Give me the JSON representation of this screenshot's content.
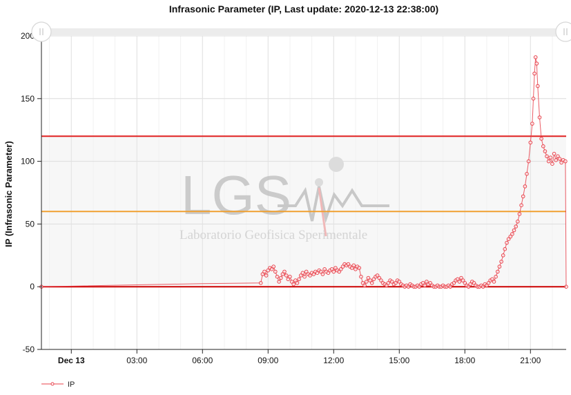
{
  "chart_data": {
    "type": "line",
    "title": "Infrasonic Parameter (IP, Last update: 2020-12-13 22:38:00)",
    "ylabel": "IP (Infrasonic Parameter)",
    "xlabel": "",
    "ylim": [
      -50,
      200
    ],
    "yticks": [
      -50,
      0,
      50,
      100,
      150,
      200
    ],
    "xlim": [
      "2020-12-12 22:38",
      "2020-12-13 22:38"
    ],
    "xticks": [
      {
        "label": "Dec 13",
        "time": "2020-12-13 00:00",
        "bold": true
      },
      {
        "label": "03:00",
        "time": "2020-12-13 03:00",
        "bold": false
      },
      {
        "label": "06:00",
        "time": "2020-12-13 06:00",
        "bold": false
      },
      {
        "label": "09:00",
        "time": "2020-12-13 09:00",
        "bold": false
      },
      {
        "label": "12:00",
        "time": "2020-12-13 12:00",
        "bold": false
      },
      {
        "label": "15:00",
        "time": "2020-12-13 15:00",
        "bold": false
      },
      {
        "label": "18:00",
        "time": "2020-12-13 18:00",
        "bold": false
      },
      {
        "label": "21:00",
        "time": "2020-12-13 21:00",
        "bold": false
      }
    ],
    "thresholds": [
      {
        "value": 0,
        "color": "#cc0000"
      },
      {
        "value": 60,
        "color": "#f0a030"
      },
      {
        "value": 120,
        "color": "#e02020"
      }
    ],
    "band": {
      "from": 0,
      "to": 120,
      "color": "#f7f7f7"
    },
    "grid": true,
    "legend": "bottom-left",
    "series": [
      {
        "name": "IP",
        "color": "#e8404a",
        "points": [
          [
            "2020-12-12 22:38",
            0
          ],
          [
            "2020-12-13 03:00",
            1.5
          ],
          [
            "2020-12-13 06:00",
            2.5
          ],
          [
            "2020-12-13 08:40",
            3
          ],
          [
            "2020-12-13 08:45",
            10
          ],
          [
            "2020-12-13 08:50",
            12
          ],
          [
            "2020-12-13 08:55",
            9
          ],
          [
            "2020-12-13 09:00",
            13
          ],
          [
            "2020-12-13 09:05",
            15
          ],
          [
            "2020-12-13 09:10",
            14
          ],
          [
            "2020-12-13 09:15",
            16
          ],
          [
            "2020-12-13 09:20",
            12
          ],
          [
            "2020-12-13 09:25",
            8
          ],
          [
            "2020-12-13 09:30",
            4
          ],
          [
            "2020-12-13 09:35",
            7
          ],
          [
            "2020-12-13 09:40",
            10
          ],
          [
            "2020-12-13 09:45",
            12
          ],
          [
            "2020-12-13 09:50",
            9
          ],
          [
            "2020-12-13 09:55",
            6
          ],
          [
            "2020-12-13 10:00",
            8
          ],
          [
            "2020-12-13 10:05",
            4
          ],
          [
            "2020-12-13 10:10",
            2
          ],
          [
            "2020-12-13 10:15",
            5
          ],
          [
            "2020-12-13 10:20",
            3
          ],
          [
            "2020-12-13 10:25",
            6
          ],
          [
            "2020-12-13 10:30",
            9
          ],
          [
            "2020-12-13 10:35",
            11
          ],
          [
            "2020-12-13 10:40",
            8
          ],
          [
            "2020-12-13 10:45",
            12
          ],
          [
            "2020-12-13 10:50",
            10
          ],
          [
            "2020-12-13 10:55",
            9
          ],
          [
            "2020-12-13 11:00",
            11
          ],
          [
            "2020-12-13 11:05",
            10
          ],
          [
            "2020-12-13 11:10",
            12
          ],
          [
            "2020-12-13 11:15",
            11
          ],
          [
            "2020-12-13 11:20",
            13
          ],
          [
            "2020-12-13 11:25",
            12
          ],
          [
            "2020-12-13 11:30",
            10
          ],
          [
            "2020-12-13 11:35",
            14
          ],
          [
            "2020-12-13 11:40",
            12
          ],
          [
            "2020-12-13 11:45",
            11
          ],
          [
            "2020-12-13 11:50",
            13
          ],
          [
            "2020-12-13 11:55",
            14
          ],
          [
            "2020-12-13 12:00",
            12
          ],
          [
            "2020-12-13 12:05",
            15
          ],
          [
            "2020-12-13 12:10",
            13
          ],
          [
            "2020-12-13 12:15",
            12
          ],
          [
            "2020-12-13 12:20",
            14
          ],
          [
            "2020-12-13 12:25",
            16
          ],
          [
            "2020-12-13 12:30",
            18
          ],
          [
            "2020-12-13 12:35",
            17
          ],
          [
            "2020-12-13 12:40",
            18
          ],
          [
            "2020-12-13 12:45",
            16
          ],
          [
            "2020-12-13 12:50",
            15
          ],
          [
            "2020-12-13 12:55",
            17
          ],
          [
            "2020-12-13 13:00",
            14
          ],
          [
            "2020-12-13 13:05",
            16
          ],
          [
            "2020-12-13 13:10",
            15
          ],
          [
            "2020-12-13 13:15",
            8
          ],
          [
            "2020-12-13 13:20",
            3
          ],
          [
            "2020-12-13 13:25",
            1
          ],
          [
            "2020-12-13 13:30",
            4
          ],
          [
            "2020-12-13 13:35",
            7
          ],
          [
            "2020-12-13 13:40",
            5
          ],
          [
            "2020-12-13 13:45",
            3
          ],
          [
            "2020-12-13 13:50",
            6
          ],
          [
            "2020-12-13 13:55",
            8
          ],
          [
            "2020-12-13 14:00",
            9
          ],
          [
            "2020-12-13 14:05",
            7
          ],
          [
            "2020-12-13 14:10",
            5
          ],
          [
            "2020-12-13 14:15",
            3
          ],
          [
            "2020-12-13 14:20",
            2
          ],
          [
            "2020-12-13 14:25",
            1
          ],
          [
            "2020-12-13 14:30",
            3
          ],
          [
            "2020-12-13 14:35",
            5
          ],
          [
            "2020-12-13 14:40",
            4
          ],
          [
            "2020-12-13 14:45",
            2
          ],
          [
            "2020-12-13 14:50",
            3
          ],
          [
            "2020-12-13 14:55",
            5
          ],
          [
            "2020-12-13 15:00",
            4
          ],
          [
            "2020-12-13 15:05",
            2
          ],
          [
            "2020-12-13 15:10",
            1
          ],
          [
            "2020-12-13 15:15",
            0
          ],
          [
            "2020-12-13 15:20",
            1
          ],
          [
            "2020-12-13 15:25",
            0
          ],
          [
            "2020-12-13 15:30",
            2
          ],
          [
            "2020-12-13 15:35",
            1
          ],
          [
            "2020-12-13 15:40",
            0
          ],
          [
            "2020-12-13 15:45",
            0
          ],
          [
            "2020-12-13 15:50",
            1
          ],
          [
            "2020-12-13 15:55",
            0
          ],
          [
            "2020-12-13 16:00",
            2
          ],
          [
            "2020-12-13 16:05",
            3
          ],
          [
            "2020-12-13 16:10",
            1
          ],
          [
            "2020-12-13 16:15",
            4
          ],
          [
            "2020-12-13 16:20",
            2
          ],
          [
            "2020-12-13 16:25",
            3
          ],
          [
            "2020-12-13 16:30",
            1
          ],
          [
            "2020-12-13 16:35",
            0
          ],
          [
            "2020-12-13 16:40",
            0
          ],
          [
            "2020-12-13 16:45",
            1
          ],
          [
            "2020-12-13 16:50",
            0
          ],
          [
            "2020-12-13 16:55",
            0
          ],
          [
            "2020-12-13 17:00",
            1
          ],
          [
            "2020-12-13 17:05",
            0
          ],
          [
            "2020-12-13 17:10",
            0
          ],
          [
            "2020-12-13 17:15",
            1
          ],
          [
            "2020-12-13 17:20",
            0
          ],
          [
            "2020-12-13 17:25",
            2
          ],
          [
            "2020-12-13 17:30",
            3
          ],
          [
            "2020-12-13 17:35",
            5
          ],
          [
            "2020-12-13 17:40",
            6
          ],
          [
            "2020-12-13 17:45",
            4
          ],
          [
            "2020-12-13 17:50",
            7
          ],
          [
            "2020-12-13 17:55",
            5
          ],
          [
            "2020-12-13 18:00",
            3
          ],
          [
            "2020-12-13 18:05",
            1
          ],
          [
            "2020-12-13 18:10",
            0
          ],
          [
            "2020-12-13 18:15",
            2
          ],
          [
            "2020-12-13 18:20",
            4
          ],
          [
            "2020-12-13 18:25",
            3
          ],
          [
            "2020-12-13 18:30",
            1
          ],
          [
            "2020-12-13 18:35",
            0
          ],
          [
            "2020-12-13 18:40",
            0
          ],
          [
            "2020-12-13 18:45",
            1
          ],
          [
            "2020-12-13 18:50",
            0
          ],
          [
            "2020-12-13 18:55",
            2
          ],
          [
            "2020-12-13 19:00",
            1
          ],
          [
            "2020-12-13 19:05",
            3
          ],
          [
            "2020-12-13 19:10",
            5
          ],
          [
            "2020-12-13 19:15",
            6
          ],
          [
            "2020-12-13 19:20",
            4
          ],
          [
            "2020-12-13 19:25",
            8
          ],
          [
            "2020-12-13 19:30",
            12
          ],
          [
            "2020-12-13 19:35",
            16
          ],
          [
            "2020-12-13 19:40",
            20
          ],
          [
            "2020-12-13 19:45",
            25
          ],
          [
            "2020-12-13 19:50",
            30
          ],
          [
            "2020-12-13 19:55",
            35
          ],
          [
            "2020-12-13 20:00",
            38
          ],
          [
            "2020-12-13 20:05",
            40
          ],
          [
            "2020-12-13 20:10",
            42
          ],
          [
            "2020-12-13 20:15",
            45
          ],
          [
            "2020-12-13 20:20",
            48
          ],
          [
            "2020-12-13 20:25",
            52
          ],
          [
            "2020-12-13 20:30",
            58
          ],
          [
            "2020-12-13 20:35",
            65
          ],
          [
            "2020-12-13 20:40",
            72
          ],
          [
            "2020-12-13 20:45",
            80
          ],
          [
            "2020-12-13 20:50",
            90
          ],
          [
            "2020-12-13 20:55",
            100
          ],
          [
            "2020-12-13 21:00",
            115
          ],
          [
            "2020-12-13 21:05",
            130
          ],
          [
            "2020-12-13 21:08",
            150
          ],
          [
            "2020-12-13 21:11",
            170
          ],
          [
            "2020-12-13 21:14",
            183
          ],
          [
            "2020-12-13 21:17",
            178
          ],
          [
            "2020-12-13 21:20",
            160
          ],
          [
            "2020-12-13 21:25",
            135
          ],
          [
            "2020-12-13 21:30",
            118
          ],
          [
            "2020-12-13 21:35",
            112
          ],
          [
            "2020-12-13 21:40",
            108
          ],
          [
            "2020-12-13 21:45",
            104
          ],
          [
            "2020-12-13 21:50",
            100
          ],
          [
            "2020-12-13 21:55",
            103
          ],
          [
            "2020-12-13 22:00",
            98
          ],
          [
            "2020-12-13 22:05",
            106
          ],
          [
            "2020-12-13 22:10",
            101
          ],
          [
            "2020-12-13 22:15",
            104
          ],
          [
            "2020-12-13 22:20",
            102
          ],
          [
            "2020-12-13 22:25",
            99
          ],
          [
            "2020-12-13 22:30",
            101
          ],
          [
            "2020-12-13 22:36",
            100
          ],
          [
            "2020-12-13 22:38",
            0
          ]
        ]
      }
    ],
    "watermark": {
      "big_text": "LGS",
      "small_text": "Laboratorio Geofisica Sperimentale"
    }
  }
}
